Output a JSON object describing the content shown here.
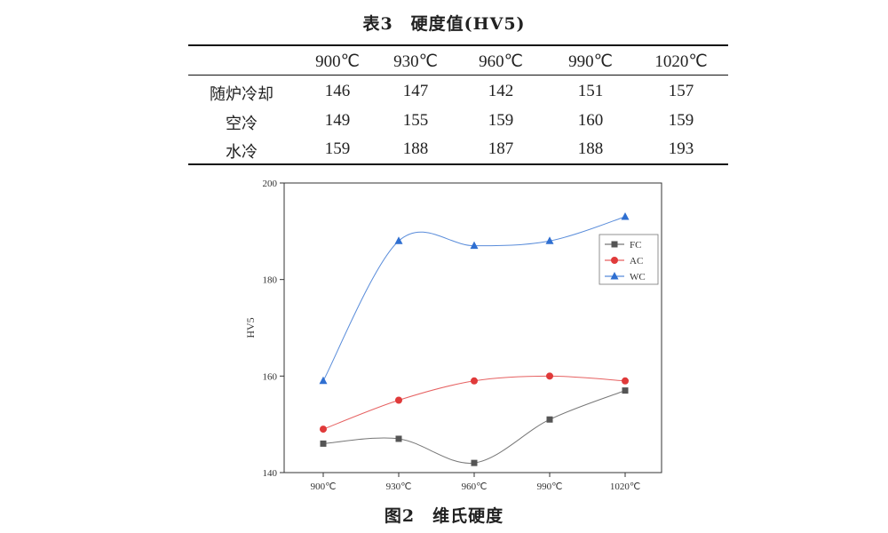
{
  "table": {
    "caption": "表3　硬度值(HV5)",
    "columns": [
      "900℃",
      "930℃",
      "960℃",
      "990℃",
      "1020℃"
    ],
    "rows": [
      {
        "label": "随炉冷却",
        "values": [
          "146",
          "147",
          "142",
          "151",
          "157"
        ]
      },
      {
        "label": "空冷",
        "values": [
          "149",
          "155",
          "159",
          "160",
          "159"
        ]
      },
      {
        "label": "水冷",
        "values": [
          "159",
          "188",
          "187",
          "188",
          "193"
        ]
      }
    ]
  },
  "figure": {
    "caption": "图2　维氏硬度"
  },
  "chart_data": {
    "type": "line",
    "categories": [
      "900℃",
      "930℃",
      "960℃",
      "990℃",
      "1020℃"
    ],
    "series": [
      {
        "name": "FC",
        "values": [
          146,
          147,
          142,
          151,
          157
        ],
        "color": "#555555",
        "marker": "square"
      },
      {
        "name": "AC",
        "values": [
          149,
          155,
          159,
          160,
          159
        ],
        "color": "#e03a3a",
        "marker": "circle"
      },
      {
        "name": "WC",
        "values": [
          159,
          188,
          187,
          188,
          193
        ],
        "color": "#2f6fd1",
        "marker": "triangle"
      }
    ],
    "ylabel": "HV5",
    "ylim": [
      140,
      200
    ],
    "yticks": [
      "140",
      "160",
      "180",
      "200"
    ],
    "legend": "top-right",
    "grid": false,
    "smooth": true
  }
}
